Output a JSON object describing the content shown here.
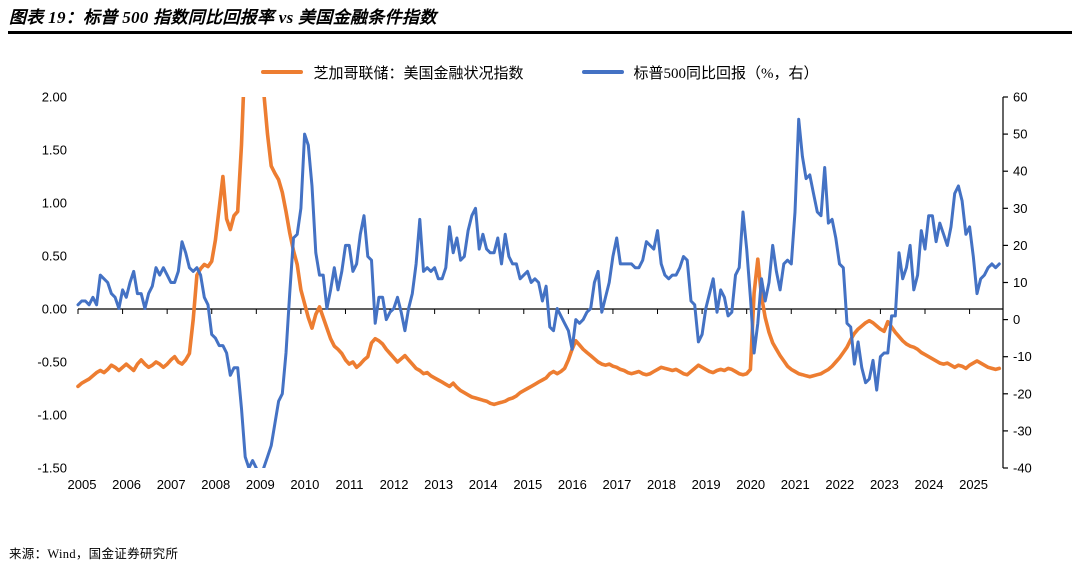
{
  "footer": {
    "source": "来源：Wind，国金证券研究所"
  },
  "chart_data": {
    "type": "line",
    "title": "图表 19：标普 500 指数同比回报率 vs 美国金融条件指数",
    "x_range": [
      2005,
      2025.75
    ],
    "x_ticks": [
      "2005",
      "2006",
      "2007",
      "2008",
      "2009",
      "2010",
      "2011",
      "2012",
      "2013",
      "2014",
      "2015",
      "2016",
      "2017",
      "2018",
      "2019",
      "2020",
      "2021",
      "2022",
      "2023",
      "2024",
      "2025"
    ],
    "grid": "off",
    "legend_position": "top-center",
    "left_axis": {
      "min": -1.5,
      "max": 2.0,
      "step": 0.5,
      "ticks": [
        "2.00",
        "1.50",
        "1.00",
        "0.50",
        "0.00",
        "-0.50",
        "-1.00",
        "-1.50"
      ]
    },
    "right_axis": {
      "min": -40,
      "max": 60,
      "step": 10,
      "ticks": [
        "60",
        "50",
        "40",
        "30",
        "20",
        "10",
        "0",
        "-10",
        "-20",
        "-30",
        "-40"
      ]
    },
    "series": [
      {
        "name": "芝加哥联储：美国金融状况指数",
        "axis": "left",
        "color": "#ED7D31",
        "stroke_width": 3.6,
        "start_year": 2005,
        "interval_months": 1,
        "values": [
          -0.73,
          -0.7,
          -0.68,
          -0.66,
          -0.63,
          -0.6,
          -0.58,
          -0.6,
          -0.57,
          -0.53,
          -0.55,
          -0.58,
          -0.55,
          -0.52,
          -0.55,
          -0.58,
          -0.52,
          -0.48,
          -0.52,
          -0.55,
          -0.53,
          -0.5,
          -0.52,
          -0.55,
          -0.52,
          -0.48,
          -0.45,
          -0.5,
          -0.52,
          -0.48,
          -0.42,
          -0.1,
          0.32,
          0.38,
          0.42,
          0.4,
          0.45,
          0.65,
          0.95,
          1.25,
          0.85,
          0.75,
          0.88,
          0.92,
          1.55,
          2.45,
          2.75,
          2.6,
          2.35,
          2.15,
          2.05,
          1.65,
          1.35,
          1.28,
          1.22,
          1.1,
          0.92,
          0.72,
          0.55,
          0.42,
          0.18,
          0.05,
          -0.08,
          -0.18,
          -0.05,
          0.02,
          -0.08,
          -0.18,
          -0.28,
          -0.35,
          -0.38,
          -0.42,
          -0.48,
          -0.52,
          -0.5,
          -0.55,
          -0.52,
          -0.48,
          -0.45,
          -0.32,
          -0.28,
          -0.3,
          -0.33,
          -0.38,
          -0.42,
          -0.46,
          -0.5,
          -0.47,
          -0.44,
          -0.48,
          -0.52,
          -0.56,
          -0.58,
          -0.61,
          -0.6,
          -0.63,
          -0.65,
          -0.67,
          -0.69,
          -0.71,
          -0.73,
          -0.7,
          -0.74,
          -0.77,
          -0.79,
          -0.81,
          -0.83,
          -0.84,
          -0.85,
          -0.86,
          -0.87,
          -0.89,
          -0.9,
          -0.89,
          -0.88,
          -0.87,
          -0.85,
          -0.84,
          -0.82,
          -0.79,
          -0.77,
          -0.75,
          -0.73,
          -0.71,
          -0.69,
          -0.67,
          -0.65,
          -0.61,
          -0.59,
          -0.61,
          -0.59,
          -0.56,
          -0.48,
          -0.38,
          -0.3,
          -0.34,
          -0.38,
          -0.41,
          -0.44,
          -0.47,
          -0.5,
          -0.52,
          -0.53,
          -0.52,
          -0.54,
          -0.55,
          -0.57,
          -0.58,
          -0.6,
          -0.61,
          -0.6,
          -0.59,
          -0.61,
          -0.62,
          -0.61,
          -0.59,
          -0.57,
          -0.55,
          -0.56,
          -0.57,
          -0.58,
          -0.57,
          -0.59,
          -0.61,
          -0.62,
          -0.59,
          -0.56,
          -0.53,
          -0.55,
          -0.57,
          -0.59,
          -0.6,
          -0.58,
          -0.57,
          -0.58,
          -0.56,
          -0.57,
          -0.59,
          -0.61,
          -0.62,
          -0.61,
          -0.57,
          0.15,
          0.47,
          0.12,
          -0.08,
          -0.22,
          -0.32,
          -0.38,
          -0.44,
          -0.49,
          -0.54,
          -0.57,
          -0.59,
          -0.61,
          -0.62,
          -0.63,
          -0.64,
          -0.63,
          -0.62,
          -0.61,
          -0.59,
          -0.57,
          -0.54,
          -0.5,
          -0.46,
          -0.41,
          -0.36,
          -0.29,
          -0.23,
          -0.19,
          -0.16,
          -0.13,
          -0.11,
          -0.13,
          -0.16,
          -0.19,
          -0.21,
          -0.12,
          -0.17,
          -0.22,
          -0.26,
          -0.3,
          -0.33,
          -0.35,
          -0.36,
          -0.38,
          -0.41,
          -0.43,
          -0.45,
          -0.47,
          -0.49,
          -0.51,
          -0.52,
          -0.51,
          -0.53,
          -0.55,
          -0.53,
          -0.54,
          -0.56,
          -0.53,
          -0.51,
          -0.49,
          -0.51,
          -0.53,
          -0.55,
          -0.56,
          -0.57,
          -0.56
        ]
      },
      {
        "name": "标普500同比回报（%，右）",
        "axis": "right",
        "color": "#4472C4",
        "stroke_width": 3.0,
        "start_year": 2005,
        "interval_months": 1,
        "values": [
          4,
          5,
          5,
          4,
          6,
          4,
          12,
          11,
          10,
          7,
          6,
          3,
          8,
          6,
          10,
          13,
          7,
          7,
          3,
          7,
          9,
          14,
          12,
          14,
          12,
          10,
          10,
          13,
          21,
          18,
          14,
          13,
          14,
          12,
          6,
          4,
          -4,
          -5,
          -7,
          -7,
          -9,
          -15,
          -13,
          -13,
          -24,
          -37,
          -40,
          -38,
          -40,
          -44,
          -40,
          -37,
          -34,
          -28,
          -22,
          -20,
          -9,
          7,
          22,
          23,
          30,
          50,
          47,
          36,
          18,
          12,
          12,
          3,
          8,
          14,
          8,
          13,
          20,
          20,
          13,
          15,
          23,
          28,
          17,
          16,
          -1,
          6,
          6,
          0,
          2,
          3,
          6,
          2,
          -3,
          3,
          7,
          15,
          27,
          13,
          14,
          13,
          14,
          11,
          11,
          14,
          25,
          18,
          22,
          16,
          17,
          24,
          28,
          30,
          19,
          23,
          19,
          18,
          18,
          22,
          15,
          23,
          17,
          15,
          15,
          11,
          12,
          13,
          10,
          11,
          10,
          5,
          9,
          -2,
          -3,
          3,
          1,
          -1,
          -3,
          -8,
          0,
          -1,
          0,
          2,
          3,
          10,
          13,
          2,
          6,
          10,
          17,
          22,
          15,
          15,
          15,
          15,
          14,
          14,
          16,
          21,
          20,
          19,
          24,
          15,
          12,
          11,
          12,
          12,
          14,
          17,
          16,
          5,
          4,
          -6,
          -4,
          3,
          7,
          11,
          2,
          8,
          6,
          1,
          2,
          12,
          14,
          29,
          19,
          6,
          -9,
          -1,
          11,
          5,
          10,
          20,
          13,
          8,
          15,
          16,
          15,
          29,
          54,
          44,
          38,
          39,
          34,
          29,
          28,
          41,
          26,
          27,
          22,
          15,
          14,
          -1,
          -2,
          -12,
          -6,
          -13,
          -17,
          -16,
          -11,
          -19,
          -10,
          -9,
          -9,
          1,
          1,
          18,
          11,
          14,
          20,
          8,
          12,
          24,
          19,
          28,
          28,
          21,
          26,
          23,
          20,
          25,
          34,
          36,
          32,
          23,
          25,
          17,
          7,
          11,
          12,
          14,
          15,
          14,
          15
        ]
      }
    ]
  }
}
